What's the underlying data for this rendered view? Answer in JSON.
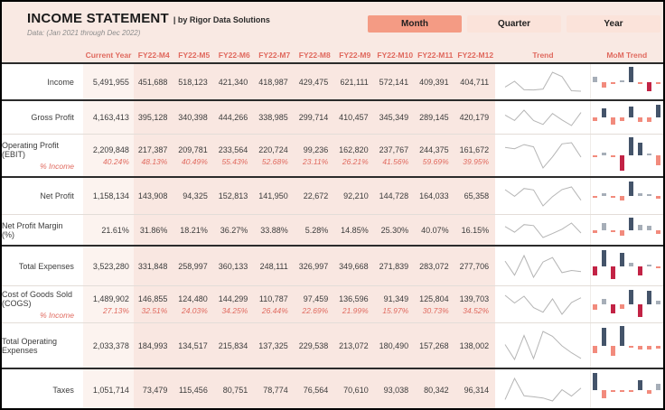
{
  "header": {
    "title": "INCOME STATEMENT",
    "title_suffix": "| by Rigor Data Solutions",
    "subtitle": "Data: (Jan 2021 through Dec 2022)",
    "buttons": [
      {
        "label": "Month",
        "active": true
      },
      {
        "label": "Quarter",
        "active": false
      },
      {
        "label": "Year",
        "active": false
      }
    ]
  },
  "table": {
    "columns": [
      "Current Year",
      "FY22-M4",
      "FY22-M5",
      "FY22-M6",
      "FY22-M7",
      "FY22-M8",
      "FY22-M9",
      "FY22-M10",
      "FY22-M11",
      "FY22-M12",
      "Trend",
      "MoM Trend"
    ],
    "rows": [
      {
        "label": "Income",
        "format": "int",
        "current_year": 5491955,
        "values": [
          451688,
          518123,
          421340,
          418987,
          429475,
          621111,
          572141,
          409391,
          404711
        ],
        "separator_after": "thick"
      },
      {
        "label": "Gross Profit",
        "format": "int",
        "current_year": 4163413,
        "values": [
          395128,
          340398,
          444266,
          338985,
          299714,
          410457,
          345349,
          289145,
          420179
        ],
        "separator_after": "thin"
      },
      {
        "label": "Operating Profit (EBIT)",
        "format": "int",
        "current_year": 2209848,
        "values": [
          217387,
          209781,
          233564,
          220724,
          99236,
          162820,
          237767,
          244375,
          161672
        ],
        "sub": {
          "label": "% Income",
          "current_year": 40.24,
          "values": [
            48.13,
            40.49,
            55.43,
            52.68,
            23.11,
            26.21,
            41.56,
            59.69,
            39.95
          ]
        },
        "separator_after": "thick"
      },
      {
        "label": "Net Profit",
        "format": "int",
        "current_year": 1158134,
        "values": [
          143908,
          94325,
          152813,
          141950,
          22672,
          92210,
          144728,
          164033,
          65358
        ],
        "separator_after": "thin"
      },
      {
        "label": "Net Profit Margin (%)",
        "format": "pct",
        "current_year": 21.61,
        "values": [
          31.86,
          18.21,
          36.27,
          33.88,
          5.28,
          14.85,
          25.3,
          40.07,
          16.15
        ],
        "separator_after": "thick"
      },
      {
        "label": "Total Expenses",
        "format": "int",
        "current_year": 3523280,
        "values": [
          331848,
          258997,
          360133,
          248111,
          326997,
          349668,
          271839,
          283072,
          277706
        ],
        "separator_after": "thin"
      },
      {
        "label": "Cost of Goods Sold (COGS)",
        "format": "int",
        "current_year": 1489902,
        "values": [
          146855,
          124480,
          144299,
          110787,
          97459,
          136596,
          91349,
          125804,
          139703
        ],
        "sub": {
          "label": "% Income",
          "current_year": 27.13,
          "values": [
            32.51,
            24.03,
            34.25,
            26.44,
            22.69,
            21.99,
            15.97,
            30.73,
            34.52
          ]
        },
        "separator_after": "thin"
      },
      {
        "label": "Total Operating Expenses",
        "format": "int",
        "current_year": 2033378,
        "values": [
          184993,
          134517,
          215834,
          137325,
          229538,
          213072,
          180490,
          157268,
          138002
        ],
        "separator_after": "thick"
      },
      {
        "label": "Taxes",
        "format": "int",
        "current_year": 1051714,
        "values": [
          73479,
          115456,
          80751,
          78774,
          76564,
          70610,
          93038,
          80342,
          96314
        ],
        "separator_after": "none"
      }
    ]
  },
  "colors": {
    "accent_active": "#f49b84",
    "accent_light": "#fbe3da",
    "band_bg": "#f9e9e3",
    "cy_col_bg": "#fcf3ef",
    "month_col_bg": "#f9e7e1",
    "header_text": "#e0695e",
    "pct_text": "#e0695e",
    "bar_pos_dark": "#44546a",
    "bar_pos_light": "#a6aeb8",
    "bar_neg_dark": "#c22345",
    "bar_neg_light": "#f28b7d",
    "sparkline": "#b5b5b5"
  }
}
